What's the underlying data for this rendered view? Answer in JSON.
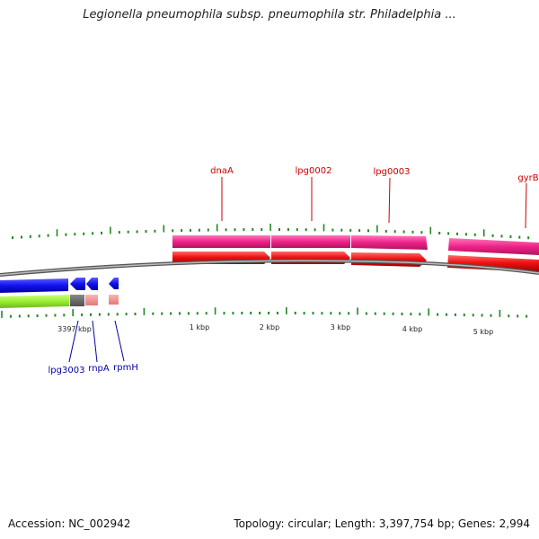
{
  "header": {
    "title": "Legionella pneumophila subsp. pneumophila str. Philadelphia ..."
  },
  "footer": {
    "accession": "Accession: NC_002942",
    "topology": "Topology: circular; Length: 3,397,754 bp; Genes: 2,994"
  },
  "genes_forward": [
    {
      "label": "dnaA"
    },
    {
      "label": "lpg0002"
    },
    {
      "label": "lpg0003"
    },
    {
      "label": "gyrB"
    }
  ],
  "genes_reverse": [
    {
      "label": "lpg3003"
    },
    {
      "label": "rnpA"
    },
    {
      "label": "rpmH"
    }
  ],
  "scale_labels": [
    "3397 kbp",
    "1 kbp",
    "2 kbp",
    "3 kbp",
    "4 kbp",
    "5 kbp"
  ],
  "colors": {
    "forward_label": "#cc0000",
    "reverse_label": "#0000aa",
    "cds_red": "#ee1111",
    "gene_pink": "#ee2288",
    "cds_blue": "#1111ee",
    "gene_green": "#99ee33",
    "backbone": "#777777",
    "tick_green": "#228822"
  }
}
